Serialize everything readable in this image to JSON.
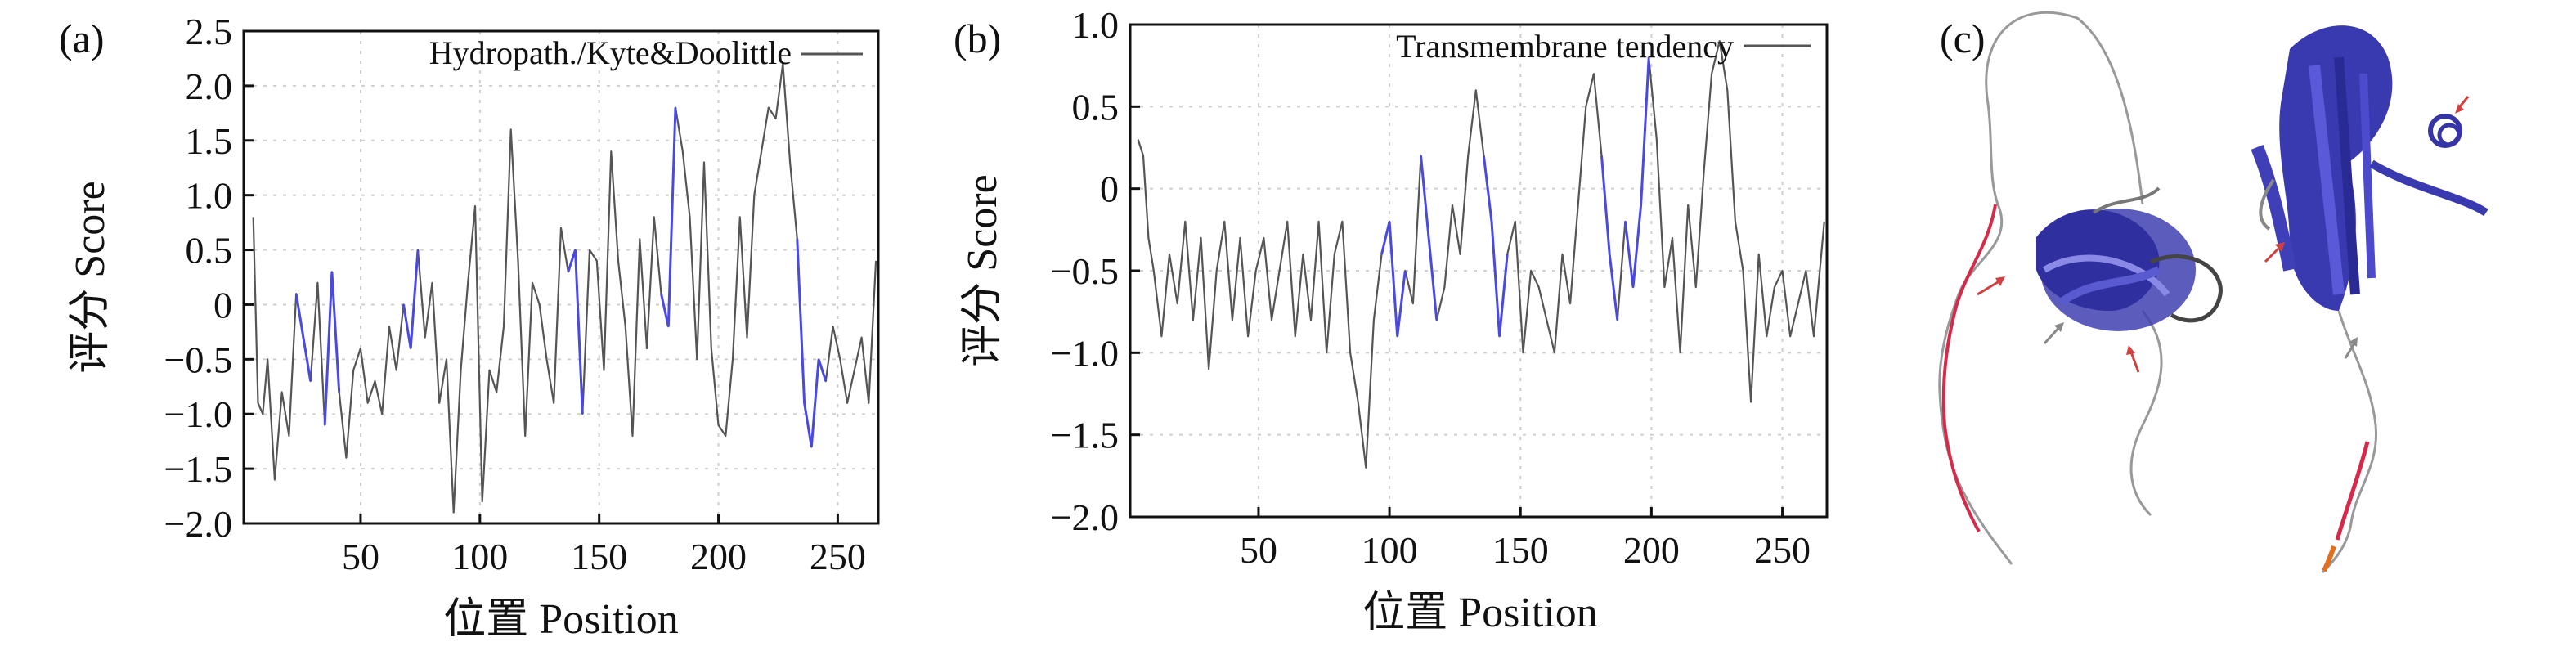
{
  "figure": {
    "panel_c_label": "(c)"
  },
  "chart_data": [
    {
      "type": "line",
      "panel_label": "(a)",
      "xlabel": "位置 Position",
      "ylabel": "评分 Score",
      "legend": "Hydropath./Kyte&Doolittle",
      "legend_position": "top",
      "grid": true,
      "xlim": [
        1,
        267
      ],
      "ylim": [
        -2.0,
        2.5
      ],
      "xticks": [
        50,
        100,
        150,
        200,
        250
      ],
      "xtick_labels": [
        "50",
        "100",
        "150",
        "200",
        "250"
      ],
      "yticks": [
        -2.0,
        -1.5,
        -1.0,
        -0.5,
        0,
        0.5,
        1.0,
        1.5,
        2.0,
        2.5
      ],
      "ytick_labels": [
        "−2.0",
        "−1.5",
        "−1.0",
        "−0.5",
        "0",
        "0.5",
        "1.0",
        "1.5",
        "2.0",
        "2.5"
      ],
      "series": [
        {
          "x": [
            5,
            7,
            9,
            11,
            14,
            17,
            20,
            23,
            26,
            29,
            32,
            35,
            38,
            41,
            44,
            47,
            50,
            53,
            56,
            59,
            62,
            65,
            68,
            71,
            74,
            77,
            80,
            83,
            86,
            89,
            92,
            95,
            98,
            101,
            104,
            107,
            110,
            113,
            116,
            119,
            122,
            125,
            128,
            131,
            134,
            137,
            140,
            143,
            146,
            149,
            152,
            155,
            158,
            161,
            164,
            167,
            170,
            173,
            176,
            179,
            182,
            185,
            188,
            191,
            194,
            197,
            200,
            203,
            206,
            209,
            212,
            215,
            218,
            221,
            224,
            227,
            230,
            233,
            236,
            239,
            242,
            245,
            248,
            251,
            254,
            257,
            260,
            263,
            266
          ],
          "y": [
            0.8,
            -0.9,
            -1.0,
            -0.5,
            -1.6,
            -0.8,
            -1.2,
            0.1,
            -0.3,
            -0.7,
            0.2,
            -1.1,
            0.3,
            -0.8,
            -1.4,
            -0.6,
            -0.4,
            -0.9,
            -0.7,
            -1.0,
            -0.2,
            -0.6,
            0.0,
            -0.4,
            0.5,
            -0.3,
            0.2,
            -0.9,
            -0.5,
            -1.9,
            -0.6,
            0.2,
            0.9,
            -1.8,
            -0.6,
            -0.8,
            -0.2,
            1.6,
            0.4,
            -1.2,
            0.2,
            0.0,
            -0.5,
            -0.9,
            0.7,
            0.3,
            0.5,
            -1.0,
            0.5,
            0.4,
            -0.6,
            1.4,
            0.4,
            -0.2,
            -1.2,
            0.6,
            -0.4,
            0.8,
            0.1,
            -0.2,
            1.8,
            1.4,
            0.8,
            -0.5,
            1.3,
            -0.4,
            -1.1,
            -1.2,
            -0.5,
            0.8,
            -0.3,
            1.0,
            1.4,
            1.8,
            1.7,
            2.2,
            1.3,
            0.6,
            -0.9,
            -1.3,
            -0.5,
            -0.7,
            -0.2,
            -0.5,
            -0.9,
            -0.6,
            -0.3,
            -0.9,
            0.4
          ]
        }
      ]
    },
    {
      "type": "line",
      "panel_label": "(b)",
      "xlabel": "位置 Position",
      "ylabel": "评分 Score",
      "legend": "Transmembrane tendency",
      "legend_position": "top",
      "grid": true,
      "xlim": [
        1,
        267
      ],
      "ylim": [
        -2.0,
        1.0
      ],
      "xticks": [
        50,
        100,
        150,
        200,
        250
      ],
      "xtick_labels": [
        "50",
        "100",
        "150",
        "200",
        "250"
      ],
      "yticks": [
        -2.0,
        -1.5,
        -1.0,
        -0.5,
        0,
        0.5,
        1.0
      ],
      "ytick_labels": [
        "−2.0",
        "−1.5",
        "−1.0",
        "−0.5",
        "0",
        "0.5",
        "1.0"
      ],
      "series": [
        {
          "x": [
            4,
            6,
            8,
            10,
            13,
            16,
            19,
            22,
            25,
            28,
            31,
            34,
            37,
            40,
            43,
            46,
            49,
            52,
            55,
            58,
            61,
            64,
            67,
            70,
            73,
            76,
            79,
            82,
            85,
            88,
            91,
            94,
            97,
            100,
            103,
            106,
            109,
            112,
            115,
            118,
            121,
            124,
            127,
            130,
            133,
            136,
            139,
            142,
            145,
            148,
            151,
            154,
            157,
            160,
            163,
            166,
            169,
            172,
            175,
            178,
            181,
            184,
            187,
            190,
            193,
            196,
            199,
            202,
            205,
            208,
            211,
            214,
            217,
            220,
            223,
            226,
            229,
            232,
            235,
            238,
            241,
            244,
            247,
            250,
            253,
            256,
            259,
            262,
            266
          ],
          "y": [
            0.3,
            0.2,
            -0.3,
            -0.5,
            -0.9,
            -0.4,
            -0.7,
            -0.2,
            -0.8,
            -0.3,
            -1.1,
            -0.5,
            -0.2,
            -0.8,
            -0.3,
            -0.9,
            -0.5,
            -0.3,
            -0.8,
            -0.5,
            -0.2,
            -0.9,
            -0.4,
            -0.8,
            -0.2,
            -1.0,
            -0.4,
            -0.2,
            -1.0,
            -1.3,
            -1.7,
            -0.8,
            -0.4,
            -0.2,
            -0.9,
            -0.5,
            -0.7,
            0.2,
            -0.3,
            -0.8,
            -0.6,
            -0.1,
            -0.4,
            0.2,
            0.6,
            0.2,
            -0.2,
            -0.9,
            -0.4,
            -0.2,
            -1.0,
            -0.5,
            -0.6,
            -0.8,
            -1.0,
            -0.4,
            -0.7,
            -0.1,
            0.5,
            0.7,
            0.2,
            -0.4,
            -0.8,
            -0.2,
            -0.6,
            -0.1,
            0.8,
            0.3,
            -0.6,
            -0.3,
            -1.0,
            -0.1,
            -0.6,
            0.1,
            0.7,
            0.9,
            0.6,
            -0.2,
            -0.5,
            -1.3,
            -0.4,
            -0.9,
            -0.6,
            -0.5,
            -0.9,
            -0.7,
            -0.5,
            -0.9,
            -0.2
          ]
        }
      ]
    }
  ]
}
